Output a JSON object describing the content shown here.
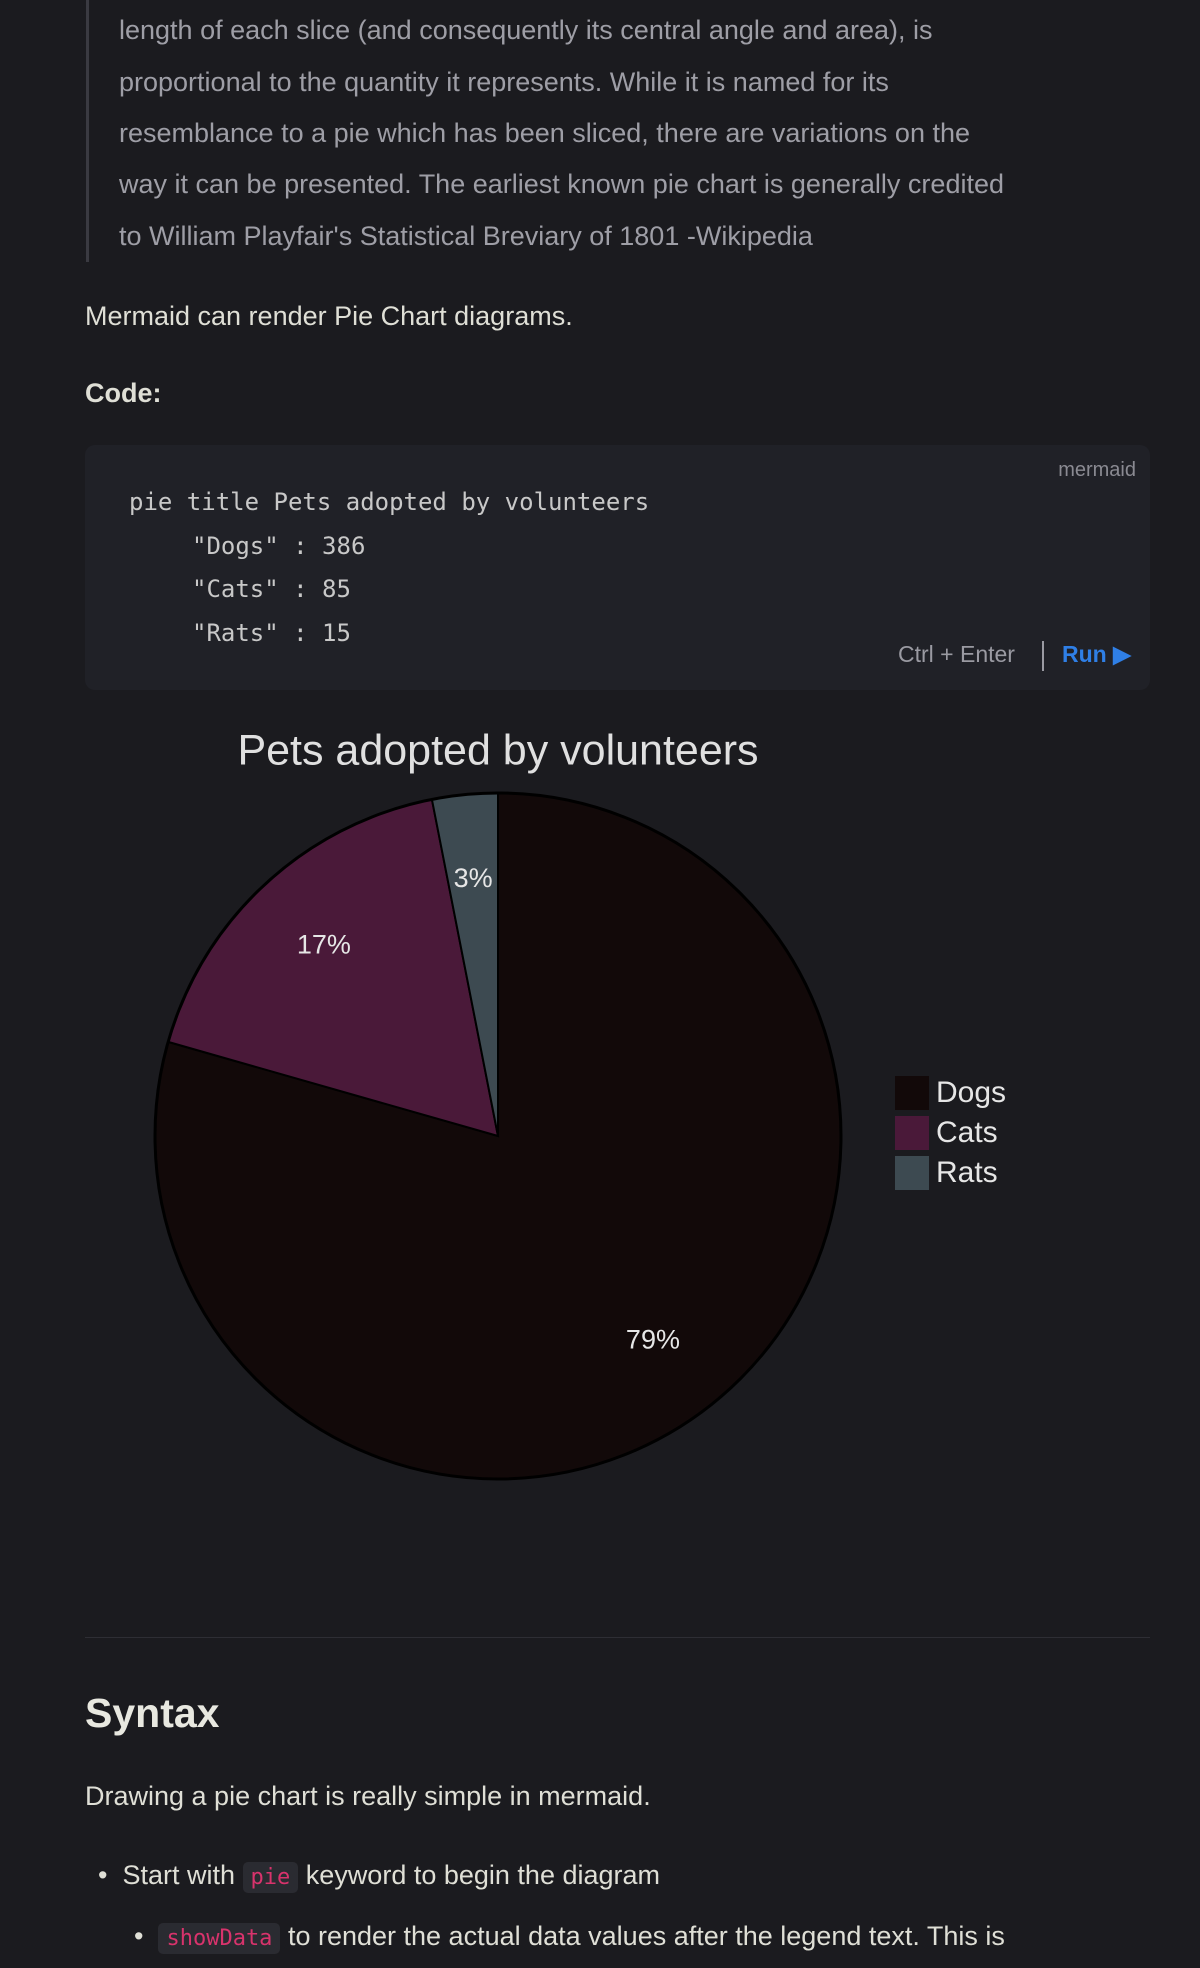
{
  "blockquote": {
    "lines": [
      "length of each slice (and consequently its central angle and area), is",
      "proportional to the quantity it represents. While it is named for its",
      "resemblance to a pie which has been sliced, there are variations on the",
      "way it can be presented. The earliest known pie chart is generally credited",
      "to William Playfair's Statistical Breviary of 1801 -Wikipedia"
    ]
  },
  "intro": "Mermaid can render Pie Chart diagrams.",
  "code_heading": "Code:",
  "code": {
    "language": "mermaid",
    "lines": [
      "pie title Pets adopted by volunteers",
      "\"Dogs\" : 386",
      "\"Cats\" : 85",
      "\"Rats\" : 15"
    ],
    "shortcut": "Ctrl + Enter",
    "run": "Run ▶"
  },
  "chart_data": {
    "type": "pie",
    "title": "Pets adopted by volunteers",
    "categories": [
      "Dogs",
      "Cats",
      "Rats"
    ],
    "values": [
      386,
      85,
      15
    ],
    "value_labels": [
      "79%",
      "17%",
      "3%"
    ],
    "colors": [
      "#120909",
      "#4a1939",
      "#3d4a51"
    ]
  },
  "syntax": {
    "heading": "Syntax",
    "text": "Drawing a pie chart is really simple in mermaid.",
    "bullets": [
      {
        "before": "Start with",
        "code": "pie",
        "after": "keyword to begin the diagram"
      },
      {
        "code": "showData",
        "after": "to render the actual data values after the legend text. This is"
      }
    ]
  }
}
